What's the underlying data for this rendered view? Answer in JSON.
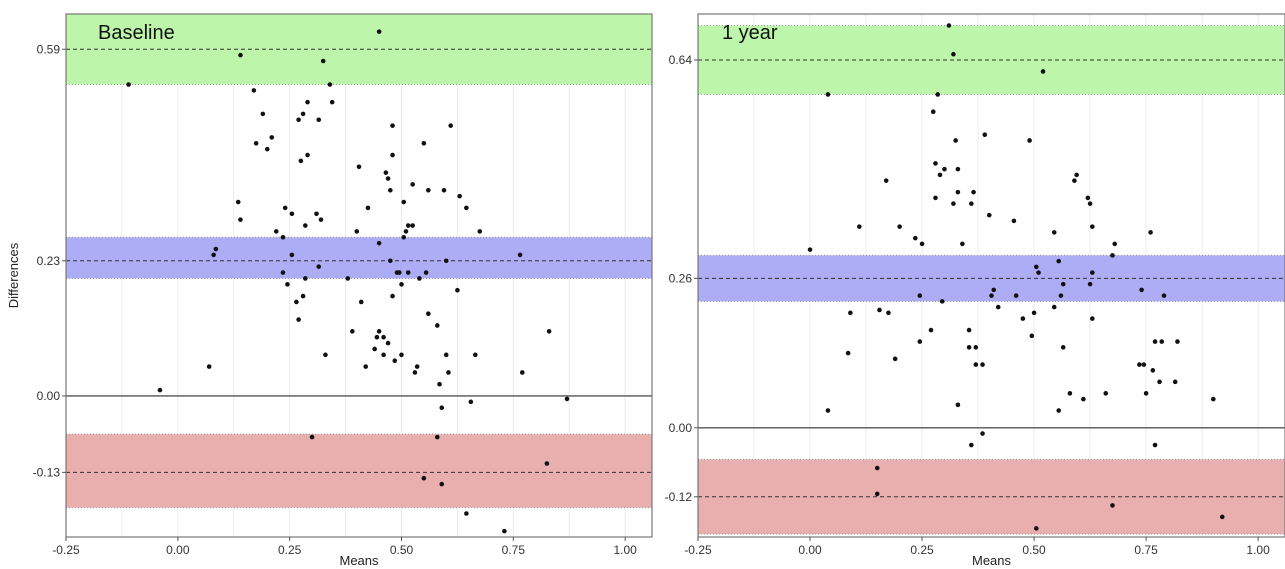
{
  "chart_data": [
    {
      "type": "scatter",
      "title": "Baseline",
      "xlabel": "Means",
      "ylabel": "Differences",
      "xlim": [
        -0.25,
        1.06
      ],
      "ylim": [
        -0.24,
        0.65
      ],
      "xticks": [
        -0.25,
        0.0,
        0.25,
        0.5,
        0.75,
        1.0
      ],
      "xtick_labels": [
        "-0.25",
        "0.00",
        "0.25",
        "0.50",
        "0.75",
        "1.00"
      ],
      "yticks": [
        -0.13,
        0.0,
        0.23,
        0.59
      ],
      "ytick_labels": [
        "-0.13",
        "0.00",
        "0.23",
        "0.59"
      ],
      "grid": true,
      "reference_line": 0.0,
      "bands": [
        {
          "name": "upper limit of agreement",
          "y": 0.59,
          "low": 0.53,
          "high": 0.66,
          "color": "#b9f5a6"
        },
        {
          "name": "mean difference",
          "y": 0.23,
          "low": 0.2,
          "high": 0.27,
          "color": "#a9a9f5"
        },
        {
          "name": "lower limit of agreement",
          "y": -0.13,
          "low": -0.19,
          "high": -0.065,
          "color": "#e8aaaa"
        }
      ],
      "points": [
        [
          -0.11,
          0.53
        ],
        [
          -0.04,
          0.01
        ],
        [
          0.07,
          0.05
        ],
        [
          0.08,
          0.24
        ],
        [
          0.085,
          0.25
        ],
        [
          0.135,
          0.33
        ],
        [
          0.14,
          0.3
        ],
        [
          0.14,
          0.58
        ],
        [
          0.17,
          0.52
        ],
        [
          0.175,
          0.43
        ],
        [
          0.19,
          0.48
        ],
        [
          0.2,
          0.42
        ],
        [
          0.21,
          0.44
        ],
        [
          0.22,
          0.28
        ],
        [
          0.235,
          0.21
        ],
        [
          0.235,
          0.27
        ],
        [
          0.24,
          0.32
        ],
        [
          0.245,
          0.19
        ],
        [
          0.255,
          0.24
        ],
        [
          0.255,
          0.31
        ],
        [
          0.265,
          0.16
        ],
        [
          0.27,
          0.13
        ],
        [
          0.27,
          0.47
        ],
        [
          0.275,
          0.4
        ],
        [
          0.28,
          0.48
        ],
        [
          0.28,
          0.17
        ],
        [
          0.285,
          0.2
        ],
        [
          0.285,
          0.29
        ],
        [
          0.29,
          0.41
        ],
        [
          0.29,
          0.5
        ],
        [
          0.3,
          -0.07
        ],
        [
          0.31,
          0.31
        ],
        [
          0.315,
          0.47
        ],
        [
          0.315,
          0.22
        ],
        [
          0.32,
          0.3
        ],
        [
          0.325,
          0.57
        ],
        [
          0.33,
          0.07
        ],
        [
          0.34,
          0.53
        ],
        [
          0.345,
          0.5
        ],
        [
          0.38,
          0.2
        ],
        [
          0.39,
          0.11
        ],
        [
          0.4,
          0.28
        ],
        [
          0.405,
          0.39
        ],
        [
          0.41,
          0.16
        ],
        [
          0.42,
          0.05
        ],
        [
          0.425,
          0.32
        ],
        [
          0.44,
          0.08
        ],
        [
          0.445,
          0.1
        ],
        [
          0.45,
          0.11
        ],
        [
          0.45,
          0.26
        ],
        [
          0.45,
          0.62
        ],
        [
          0.46,
          0.07
        ],
        [
          0.46,
          0.1
        ],
        [
          0.465,
          0.38
        ],
        [
          0.47,
          0.37
        ],
        [
          0.47,
          0.09
        ],
        [
          0.475,
          0.23
        ],
        [
          0.475,
          0.35
        ],
        [
          0.48,
          0.41
        ],
        [
          0.48,
          0.46
        ],
        [
          0.48,
          0.17
        ],
        [
          0.485,
          0.06
        ],
        [
          0.49,
          0.21
        ],
        [
          0.495,
          0.21
        ],
        [
          0.5,
          0.19
        ],
        [
          0.5,
          0.07
        ],
        [
          0.505,
          0.33
        ],
        [
          0.505,
          0.27
        ],
        [
          0.51,
          0.28
        ],
        [
          0.515,
          0.29
        ],
        [
          0.515,
          0.21
        ],
        [
          0.525,
          0.36
        ],
        [
          0.525,
          0.29
        ],
        [
          0.53,
          0.04
        ],
        [
          0.535,
          0.05
        ],
        [
          0.54,
          0.2
        ],
        [
          0.55,
          0.43
        ],
        [
          0.55,
          -0.14
        ],
        [
          0.555,
          0.21
        ],
        [
          0.56,
          0.35
        ],
        [
          0.56,
          0.14
        ],
        [
          0.58,
          0.12
        ],
        [
          0.58,
          -0.07
        ],
        [
          0.585,
          0.02
        ],
        [
          0.59,
          -0.02
        ],
        [
          0.59,
          -0.15
        ],
        [
          0.595,
          0.35
        ],
        [
          0.6,
          0.23
        ],
        [
          0.6,
          0.07
        ],
        [
          0.605,
          0.04
        ],
        [
          0.61,
          0.46
        ],
        [
          0.625,
          0.18
        ],
        [
          0.63,
          0.34
        ],
        [
          0.645,
          0.32
        ],
        [
          0.645,
          -0.2
        ],
        [
          0.655,
          -0.01
        ],
        [
          0.665,
          0.07
        ],
        [
          0.675,
          0.28
        ],
        [
          0.73,
          -0.23
        ],
        [
          0.765,
          0.24
        ],
        [
          0.77,
          0.04
        ],
        [
          0.825,
          -0.115
        ],
        [
          0.83,
          0.11
        ],
        [
          0.87,
          -0.005
        ]
      ]
    },
    {
      "type": "scatter",
      "title": "1 year",
      "xlabel": "Means",
      "ylabel": "",
      "xlim": [
        -0.25,
        1.06
      ],
      "ylim": [
        -0.19,
        0.72
      ],
      "xticks": [
        -0.25,
        0.0,
        0.25,
        0.5,
        0.75,
        1.0
      ],
      "xtick_labels": [
        "-0.25",
        "0.00",
        "0.25",
        "0.50",
        "0.75",
        "1.00"
      ],
      "yticks": [
        -0.12,
        0.0,
        0.26,
        0.64
      ],
      "ytick_labels": [
        "-0.12",
        "0.00",
        "0.26",
        "0.64"
      ],
      "grid": true,
      "reference_line": 0.0,
      "bands": [
        {
          "name": "upper limit of agreement",
          "y": 0.64,
          "low": 0.58,
          "high": 0.7,
          "color": "#b9f5a6"
        },
        {
          "name": "mean difference",
          "y": 0.26,
          "low": 0.22,
          "high": 0.3,
          "color": "#a9a9f5"
        },
        {
          "name": "lower limit of agreement",
          "y": -0.12,
          "low": -0.185,
          "high": -0.055,
          "color": "#e8aaaa"
        }
      ],
      "points": [
        [
          0.0,
          0.31
        ],
        [
          0.04,
          0.58
        ],
        [
          0.04,
          0.03
        ],
        [
          0.085,
          0.13
        ],
        [
          0.09,
          0.2
        ],
        [
          0.11,
          0.35
        ],
        [
          0.15,
          -0.07
        ],
        [
          0.15,
          -0.115
        ],
        [
          0.155,
          0.205
        ],
        [
          0.17,
          0.43
        ],
        [
          0.175,
          0.2
        ],
        [
          0.19,
          0.12
        ],
        [
          0.2,
          0.35
        ],
        [
          0.235,
          0.33
        ],
        [
          0.245,
          0.23
        ],
        [
          0.245,
          0.15
        ],
        [
          0.25,
          0.32
        ],
        [
          0.27,
          0.17
        ],
        [
          0.275,
          0.55
        ],
        [
          0.28,
          0.4
        ],
        [
          0.28,
          0.46
        ],
        [
          0.285,
          0.58
        ],
        [
          0.29,
          0.44
        ],
        [
          0.295,
          0.22
        ],
        [
          0.3,
          0.45
        ],
        [
          0.31,
          0.7
        ],
        [
          0.32,
          0.39
        ],
        [
          0.32,
          0.65
        ],
        [
          0.325,
          0.5
        ],
        [
          0.33,
          0.41
        ],
        [
          0.33,
          0.45
        ],
        [
          0.33,
          0.04
        ],
        [
          0.34,
          0.32
        ],
        [
          0.355,
          0.17
        ],
        [
          0.355,
          0.14
        ],
        [
          0.36,
          -0.03
        ],
        [
          0.36,
          0.39
        ],
        [
          0.365,
          0.41
        ],
        [
          0.37,
          0.14
        ],
        [
          0.37,
          0.11
        ],
        [
          0.385,
          -0.01
        ],
        [
          0.385,
          0.11
        ],
        [
          0.39,
          0.51
        ],
        [
          0.4,
          0.37
        ],
        [
          0.405,
          0.23
        ],
        [
          0.41,
          0.24
        ],
        [
          0.42,
          0.21
        ],
        [
          0.455,
          0.36
        ],
        [
          0.46,
          0.23
        ],
        [
          0.475,
          0.19
        ],
        [
          0.49,
          0.5
        ],
        [
          0.495,
          0.16
        ],
        [
          0.5,
          0.2
        ],
        [
          0.505,
          0.28
        ],
        [
          0.505,
          -0.175
        ],
        [
          0.51,
          0.27
        ],
        [
          0.52,
          0.62
        ],
        [
          0.545,
          0.34
        ],
        [
          0.545,
          0.21
        ],
        [
          0.555,
          0.29
        ],
        [
          0.555,
          0.03
        ],
        [
          0.56,
          0.23
        ],
        [
          0.565,
          0.25
        ],
        [
          0.565,
          0.14
        ],
        [
          0.58,
          0.06
        ],
        [
          0.59,
          0.43
        ],
        [
          0.595,
          0.44
        ],
        [
          0.61,
          0.05
        ],
        [
          0.62,
          0.4
        ],
        [
          0.625,
          0.39
        ],
        [
          0.625,
          0.25
        ],
        [
          0.63,
          0.35
        ],
        [
          0.63,
          0.27
        ],
        [
          0.63,
          0.19
        ],
        [
          0.66,
          0.06
        ],
        [
          0.675,
          -0.135
        ],
        [
          0.675,
          0.3
        ],
        [
          0.68,
          0.32
        ],
        [
          0.735,
          0.11
        ],
        [
          0.74,
          0.24
        ],
        [
          0.745,
          0.11
        ],
        [
          0.75,
          0.06
        ],
        [
          0.76,
          0.34
        ],
        [
          0.765,
          0.1
        ],
        [
          0.77,
          -0.03
        ],
        [
          0.77,
          0.15
        ],
        [
          0.78,
          0.08
        ],
        [
          0.785,
          0.15
        ],
        [
          0.79,
          0.23
        ],
        [
          0.815,
          0.08
        ],
        [
          0.82,
          0.15
        ],
        [
          0.9,
          0.05
        ],
        [
          0.92,
          -0.155
        ]
      ]
    }
  ]
}
